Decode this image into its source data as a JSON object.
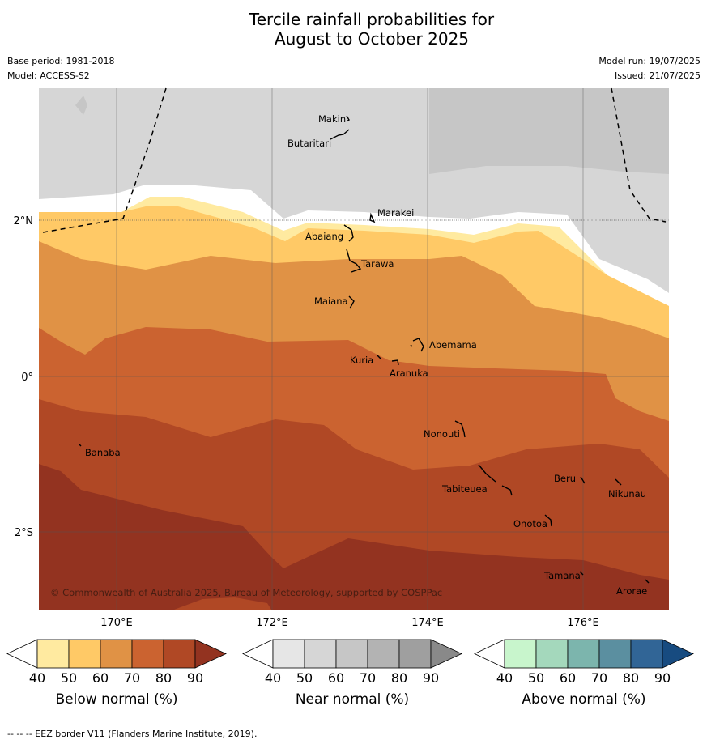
{
  "title_line1": "Tercile rainfall probabilities for",
  "title_line2": "August to October 2025",
  "base_period": "Base period: 1981-2018",
  "model": "Model: ACCESS-S2",
  "model_run": "Model run: 19/07/2025",
  "issued": "Issued: 21/07/2025",
  "copyright": "© Commonwealth of Australia 2025, Bureau of Meteorology, supported by COSPPac",
  "lat_labels": [
    "2°N",
    "0°",
    "2°S"
  ],
  "lon_labels": [
    "170°E",
    "172°E",
    "174°E",
    "176°E"
  ],
  "places": [
    "Makin",
    "Butaritari",
    "Marakei",
    "Abaiang",
    "Tarawa",
    "Maiana",
    "Abemama",
    "Kuria",
    "Aranuka",
    "Nonouti",
    "Banaba",
    "Tabiteuea",
    "Beru",
    "Nikunau",
    "Onotoa",
    "Tamana",
    "Arorae"
  ],
  "colorbars": [
    {
      "label": "Below normal (%)",
      "ticks": [
        "40",
        "50",
        "60",
        "70",
        "80",
        "90"
      ],
      "colors": [
        "#ffffff",
        "#ffeaa0",
        "#ffc966",
        "#e09245",
        "#cb6330",
        "#b04825",
        "#933320"
      ]
    },
    {
      "label": "Near normal (%)",
      "ticks": [
        "40",
        "50",
        "60",
        "70",
        "80",
        "90"
      ],
      "colors": [
        "#ffffff",
        "#e6e6e6",
        "#d6d6d6",
        "#c6c6c6",
        "#b3b3b3",
        "#9f9f9f",
        "#898989"
      ]
    },
    {
      "label": "Above normal (%)",
      "ticks": [
        "40",
        "50",
        "60",
        "70",
        "80",
        "90"
      ],
      "colors": [
        "#ffffff",
        "#c8f5cc",
        "#a4d8bc",
        "#7cb5ad",
        "#5b8fa0",
        "#316596",
        "#174b80"
      ]
    }
  ],
  "footer": "--  --  -- EEZ border V11 (Flanders Marine Institute, 2019)."
}
